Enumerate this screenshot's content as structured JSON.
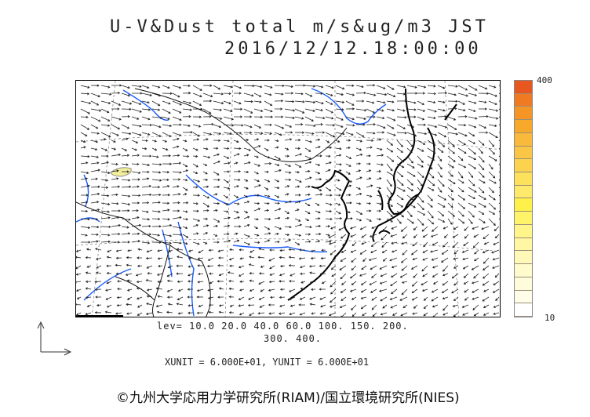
{
  "title": {
    "line1": "U-V&Dust total m/s&ug/m3 JST",
    "line2": "2016/12/12.18:00:00"
  },
  "colorbar": {
    "max_label": "400",
    "min_label": "10",
    "colors": [
      "#e8571f",
      "#f07a22",
      "#f49526",
      "#f8a92c",
      "#f9b93a",
      "#fbc645",
      "#fcd24f",
      "#fde05b",
      "#fee96a",
      "#fff04a",
      "#fff36a",
      "#fff58a",
      "#fff7a4",
      "#fff9b9",
      "#fffbcc",
      "#fffcdb",
      "#fffde8",
      "#ffffff"
    ]
  },
  "levels": {
    "line1": "lev= 10.0 20.0 40.0 60.0 100. 150. 200.",
    "line2": "300. 400."
  },
  "units": "XUNIT = 6.000E+01, YUNIT = 6.000E+01",
  "credit": "©九州大学応用力学研究所(RIAM)/国立環境研究所(NIES)",
  "map": {
    "field": "wind vectors and dust concentration",
    "dust_patch_color": "#f2ee9a"
  }
}
